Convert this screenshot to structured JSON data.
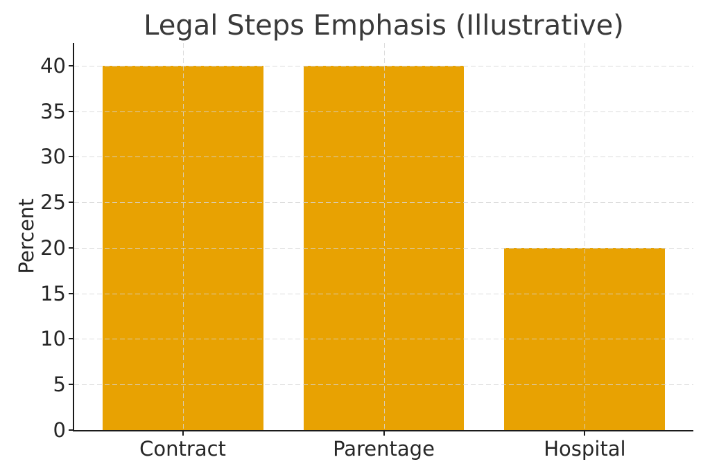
{
  "chart_data": {
    "type": "bar",
    "title": "Legal Steps Emphasis (Illustrative)",
    "categories": [
      "Contract",
      "Parentage",
      "Hospital"
    ],
    "values": [
      40,
      40,
      20
    ],
    "xlabel": "",
    "ylabel": "Percent",
    "ylim": [
      0,
      42.5
    ],
    "yticks": [
      0,
      5,
      10,
      15,
      20,
      25,
      30,
      35,
      40
    ],
    "bar_width_fraction": 0.8,
    "bar_color": "#E8A202",
    "grid": "on",
    "grid_line_style": "dashed",
    "grid_color": "rgba(213,213,213,0.85)",
    "spine_color": "#1a1a1a",
    "title_color": "#3a3a3a",
    "tick_label_color": "#262626",
    "legend_position": "none",
    "background_color": "#ffffff"
  }
}
